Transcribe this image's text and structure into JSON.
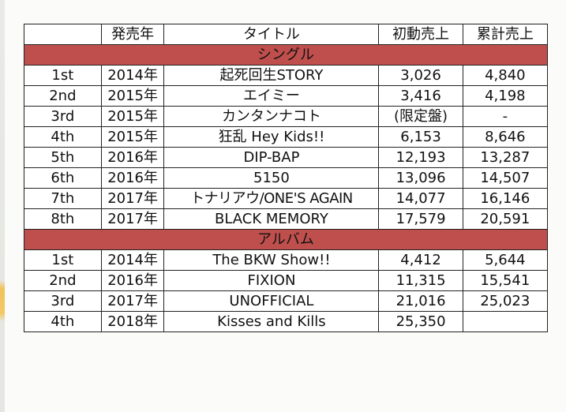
{
  "table": {
    "headers": [
      "",
      "発売年",
      "タイトル",
      "初動売上",
      "累計売上"
    ],
    "sections": [
      {
        "label": "シングル",
        "rows": [
          [
            "1st",
            "2014年",
            "起死回生STORY",
            "3,026",
            "4,840"
          ],
          [
            "2nd",
            "2015年",
            "エイミー",
            "3,416",
            "4,198"
          ],
          [
            "3rd",
            "2015年",
            "カンタンナコト",
            "(限定盤)",
            "-"
          ],
          [
            "4th",
            "2015年",
            "狂乱 Hey Kids!!",
            "6,153",
            "8,646"
          ],
          [
            "5th",
            "2016年",
            "DIP-BAP",
            "12,193",
            "13,287"
          ],
          [
            "6th",
            "2016年",
            "5150",
            "13,096",
            "14,507"
          ],
          [
            "7th",
            "2017年",
            "トナリアウ/ONE'S AGAIN",
            "14,077",
            "16,146"
          ],
          [
            "8th",
            "2017年",
            "BLACK MEMORY",
            "17,579",
            "20,591"
          ]
        ]
      },
      {
        "label": "アルバム",
        "rows": [
          [
            "1st",
            "2014年",
            "The BKW Show!!",
            "4,412",
            "5,644"
          ],
          [
            "2nd",
            "2016年",
            "FIXION",
            "11,315",
            "15,541"
          ],
          [
            "3rd",
            "2017年",
            "UNOFFICIAL",
            "21,016",
            "25,023"
          ],
          [
            "4th",
            "2018年",
            "Kisses and Kills",
            "25,350",
            ""
          ]
        ]
      }
    ]
  },
  "colors": {
    "section_band": "#bf4f4d",
    "border": "#222222",
    "accent_strip": "#f0c35a"
  }
}
